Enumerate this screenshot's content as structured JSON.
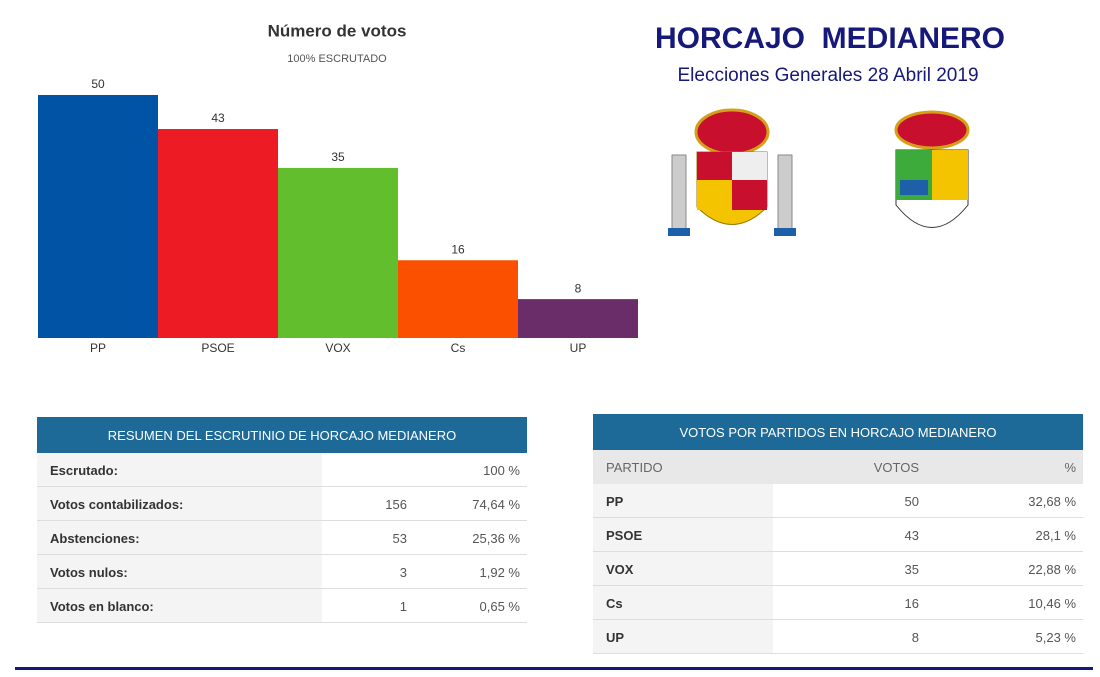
{
  "header": {
    "title": "HORCAJO  MEDIANERO",
    "subtitle": "Elecciones Generales 28 Abril 2019"
  },
  "chart_data": {
    "type": "bar",
    "title": "Número de votos",
    "subtitle": "100% ESCRUTADO",
    "categories": [
      "PP",
      "PSOE",
      "VOX",
      "Cs",
      "UP"
    ],
    "values": [
      50,
      43,
      35,
      16,
      8
    ],
    "colors": [
      "#0153a5",
      "#ed1c24",
      "#63be2d",
      "#fa5000",
      "#6a2d69"
    ]
  },
  "summary": {
    "title": "RESUMEN DEL ESCRUTINIO DE HORCAJO MEDIANERO",
    "rows": [
      {
        "label": "Escrutado:",
        "percent": "100 %"
      },
      {
        "label": "Votos contabilizados:",
        "count": 156,
        "percent": "74,64 %"
      },
      {
        "label": "Abstenciones:",
        "count": 53,
        "percent": "25,36 %"
      },
      {
        "label": "Votos nulos:",
        "count": 3,
        "percent": "1,92 %"
      },
      {
        "label": "Votos en blanco:",
        "count": 1,
        "percent": "0,65 %"
      }
    ]
  },
  "parties": {
    "title": "VOTOS POR PARTIDOS EN HORCAJO MEDIANERO",
    "columns": [
      "PARTIDO",
      "VOTOS",
      "%"
    ],
    "rows": [
      {
        "party": "PP",
        "votes": 50,
        "percent": "32,68 %"
      },
      {
        "party": "PSOE",
        "votes": 43,
        "percent": "28,1 %"
      },
      {
        "party": "VOX",
        "votes": 35,
        "percent": "22,88 %"
      },
      {
        "party": "Cs",
        "votes": 16,
        "percent": "10,46 %"
      },
      {
        "party": "UP",
        "votes": 8,
        "percent": "5,23 %"
      }
    ]
  }
}
